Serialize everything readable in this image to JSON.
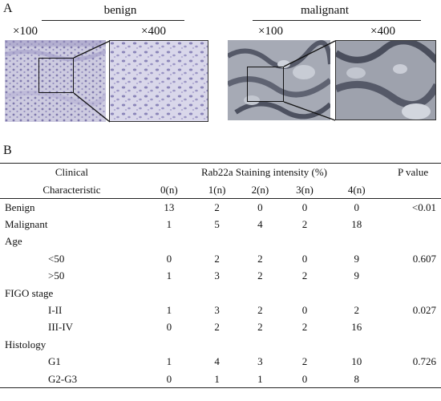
{
  "panel_a_label": "A",
  "panel_b_label": "B",
  "benign": {
    "title": "benign",
    "mag_low": "×100",
    "mag_high": "×400"
  },
  "malignant": {
    "title": "malignant",
    "mag_low": "×100",
    "mag_high": "×400"
  },
  "table": {
    "header_clinical": "Clinical",
    "header_characteristic": "Characteristic",
    "header_staining": "Rab22a Staining intensity (%)",
    "header_pvalue": "P value",
    "intensity_cols": [
      "0(n)",
      "1(n)",
      "2(n)",
      "3(n)",
      "4(n)"
    ],
    "rows": [
      {
        "label": "Benign",
        "values": [
          "13",
          "2",
          "0",
          "0",
          "0"
        ],
        "p": "<0.01"
      },
      {
        "label": "Malignant",
        "values": [
          "1",
          "5",
          "4",
          "2",
          "18"
        ],
        "p": ""
      },
      {
        "label": "Age",
        "values": [
          "",
          "",
          "",
          "",
          ""
        ],
        "p": ""
      },
      {
        "label": "<50",
        "values": [
          "0",
          "2",
          "2",
          "0",
          "9"
        ],
        "p": "0.607"
      },
      {
        "label": ">50",
        "values": [
          "1",
          "3",
          "2",
          "2",
          "9"
        ],
        "p": ""
      },
      {
        "label": "FIGO stage",
        "values": [
          "",
          "",
          "",
          "",
          ""
        ],
        "p": ""
      },
      {
        "label": "I-II",
        "values": [
          "1",
          "3",
          "2",
          "0",
          "2"
        ],
        "p": "0.027"
      },
      {
        "label": "III-IV",
        "values": [
          "0",
          "2",
          "2",
          "2",
          "16"
        ],
        "p": ""
      },
      {
        "label": "Histology",
        "values": [
          "",
          "",
          "",
          "",
          ""
        ],
        "p": ""
      },
      {
        "label": "G1",
        "values": [
          "1",
          "4",
          "3",
          "2",
          "10"
        ],
        "p": "0.726"
      },
      {
        "label": "G2-G3",
        "values": [
          "0",
          "1",
          "1",
          "0",
          "8"
        ],
        "p": ""
      }
    ]
  },
  "colors": {
    "benign_tissue": "#c9c6de",
    "benign_stain": "#8d86b5",
    "malignant_tissue": "#a9adb8",
    "malignant_stain": "#4d5160"
  }
}
